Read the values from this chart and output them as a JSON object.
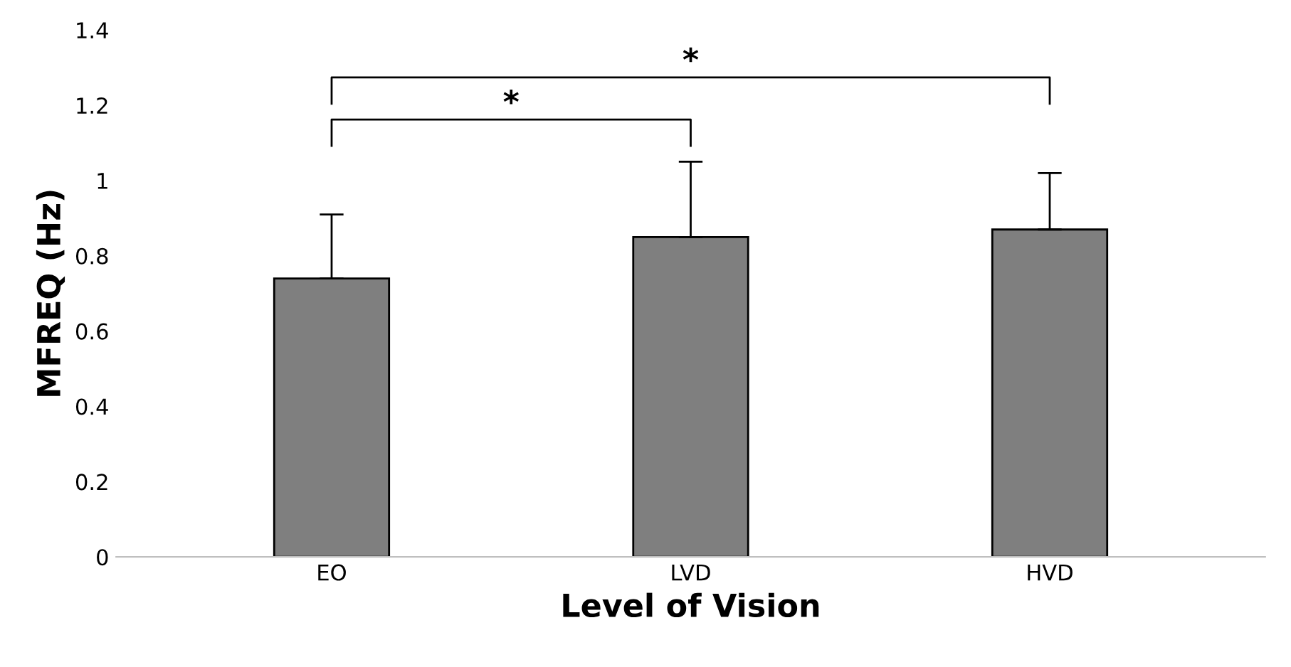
{
  "chart_data": {
    "type": "bar",
    "xlabel": "Level of Vision",
    "ylabel": "MFREQ (Hz)",
    "categories": [
      "EO",
      "LVD",
      "HVD"
    ],
    "values": [
      0.74,
      0.85,
      0.87
    ],
    "errors": [
      [
        0.74,
        0.91
      ],
      [
        0.85,
        1.05
      ],
      [
        0.87,
        1.02
      ]
    ],
    "color": "#7f7f7f",
    "ylim": [
      0,
      1.4
    ],
    "yticks": [
      0,
      0.2,
      0.4,
      0.6,
      0.8,
      1,
      1.2,
      1.4
    ],
    "grid": false,
    "annotations": [
      "*",
      "*"
    ]
  }
}
